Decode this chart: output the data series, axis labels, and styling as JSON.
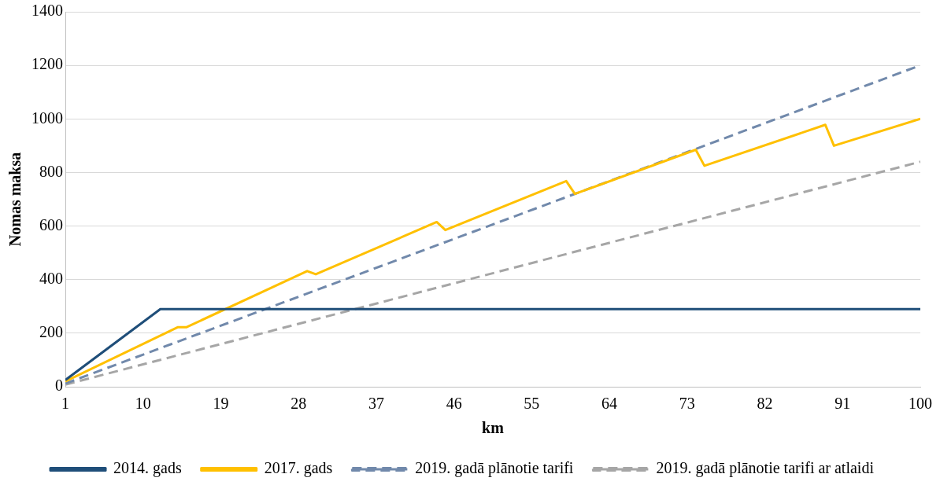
{
  "chart_data": {
    "type": "line",
    "xlabel": "km",
    "ylabel": "Nomas maksa",
    "xlim": [
      1,
      100
    ],
    "xticks": [
      1,
      10,
      19,
      28,
      37,
      46,
      55,
      64,
      73,
      82,
      91,
      100
    ],
    "ylim": [
      0,
      1400
    ],
    "yticks": [
      0,
      200,
      400,
      600,
      800,
      1000,
      1200,
      1400
    ],
    "grid": "y",
    "legend": "bottom",
    "marker": "none",
    "series": [
      {
        "name": "2014. gads",
        "color": "#1f4e79",
        "line_style": "solid",
        "x": [
          1,
          12,
          100
        ],
        "values": [
          25,
          290,
          290
        ]
      },
      {
        "name": "2017. gads",
        "color": "#ffc000",
        "line_style": "solid",
        "x": [
          1,
          14,
          15,
          29,
          30,
          44,
          45,
          59,
          60,
          74,
          75,
          89,
          90,
          100
        ],
        "values": [
          20,
          222,
          222,
          432,
          420,
          615,
          585,
          768,
          720,
          885,
          825,
          978,
          900,
          1000
        ]
      },
      {
        "name": "2019. gadā plānotie tarifi",
        "color": "#7189ab",
        "line_style": "dashed",
        "x": [
          1,
          100
        ],
        "values": [
          12,
          1200
        ]
      },
      {
        "name": "2019. gadā plānotie tarifi ar atlaidi",
        "color": "#a6a6a6",
        "line_style": "dashed",
        "x": [
          1,
          100
        ],
        "values": [
          8,
          840
        ]
      }
    ]
  }
}
